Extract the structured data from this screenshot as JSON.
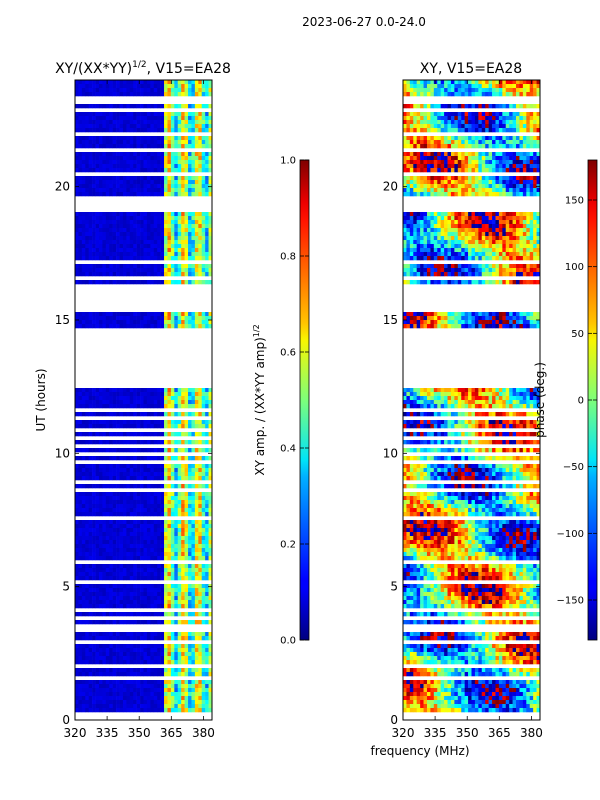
{
  "figure": {
    "suptitle": "2023-06-27 0.0-24.0",
    "xlabel": "frequency (MHz)",
    "ylabel": "UT (hours)"
  },
  "chart_data": [
    {
      "type": "heatmap",
      "title_main": "XY/(XX*YY)",
      "title_sup": "1/2",
      "title_tail": ", V15=EA28",
      "xlim": [
        320,
        384
      ],
      "ylim": [
        0,
        24
      ],
      "x_ticks": [
        320,
        335,
        350,
        365,
        380
      ],
      "y_ticks": [
        0,
        5,
        10,
        15,
        20
      ],
      "colorbar": {
        "label_main": "XY amp. / (XX*YY amp)",
        "label_sup": "1/2",
        "range": [
          0.0,
          1.0
        ],
        "ticks": [
          "0.0",
          "0.2",
          "0.4",
          "0.6",
          "0.8",
          "1.0"
        ],
        "colormap": "jet"
      }
    },
    {
      "type": "heatmap",
      "title": "XY, V15=EA28",
      "xlim": [
        320,
        384
      ],
      "ylim": [
        0,
        24
      ],
      "x_ticks": [
        320,
        335,
        350,
        365,
        380
      ],
      "y_ticks": [
        0,
        5,
        10,
        15,
        20
      ],
      "colorbar": {
        "label": "phase (deg.)",
        "range": [
          -180,
          180
        ],
        "ticks": [
          "150",
          "100",
          "50",
          "0",
          "−50",
          "−100",
          "−150"
        ],
        "colormap": "jet"
      }
    }
  ],
  "data_gaps_ut_hours": [
    [
      0.05,
      0.3
    ],
    [
      0.85,
      0.95
    ],
    [
      1.55,
      1.65
    ],
    [
      1.95,
      2.05
    ],
    [
      2.9,
      3.0
    ],
    [
      3.3,
      3.55
    ],
    [
      3.7,
      3.85
    ],
    [
      4.05,
      4.15
    ],
    [
      5.1,
      5.25
    ],
    [
      5.8,
      6.0
    ],
    [
      7.55,
      7.7
    ],
    [
      8.05,
      8.12
    ],
    [
      8.35,
      8.45
    ],
    [
      8.6,
      8.68
    ],
    [
      8.9,
      8.98
    ],
    [
      9.15,
      9.22
    ],
    [
      9.4,
      9.48
    ],
    [
      9.65,
      9.72
    ],
    [
      9.9,
      9.98
    ],
    [
      10.2,
      10.28
    ],
    [
      10.5,
      10.58
    ],
    [
      10.8,
      10.88
    ],
    [
      11.05,
      11.12
    ],
    [
      11.3,
      11.38
    ],
    [
      11.6,
      11.68
    ],
    [
      11.85,
      11.92
    ],
    [
      12.5,
      14.35
    ],
    [
      14.45,
      14.75
    ],
    [
      15.3,
      16.3
    ],
    [
      16.55,
      16.7
    ],
    [
      17.05,
      17.2
    ],
    [
      17.8,
      17.88
    ],
    [
      18.55,
      18.62
    ],
    [
      19.1,
      19.18
    ],
    [
      19.25,
      19.6
    ],
    [
      20.2,
      20.3
    ],
    [
      20.45,
      20.55
    ],
    [
      21.3,
      21.4
    ],
    [
      21.9,
      22.0
    ],
    [
      22.45,
      22.55
    ],
    [
      22.75,
      22.9
    ],
    [
      23.1,
      23.35
    ]
  ]
}
